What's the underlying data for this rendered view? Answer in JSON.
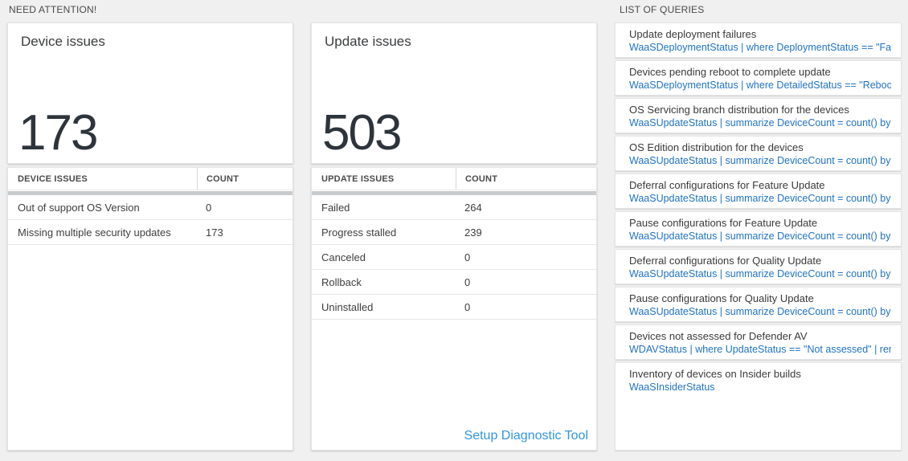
{
  "colors": {
    "big_number": "#2e343b",
    "query_link": "#2173c4",
    "setup_link": "#3295e0"
  },
  "need_attention": {
    "header": "NEED ATTENTION!",
    "device_card": {
      "title": "Device issues",
      "count": "173"
    },
    "device_table": {
      "columns": [
        "DEVICE ISSUES",
        "COUNT"
      ],
      "rows": [
        {
          "label": "Out of support OS Version",
          "count": "0"
        },
        {
          "label": "Missing multiple security updates",
          "count": "173"
        }
      ]
    },
    "update_card": {
      "title": "Update issues",
      "count": "503"
    },
    "update_table": {
      "columns": [
        "UPDATE ISSUES",
        "COUNT"
      ],
      "rows": [
        {
          "label": "Failed",
          "count": "264"
        },
        {
          "label": "Progress stalled",
          "count": "239"
        },
        {
          "label": "Canceled",
          "count": "0"
        },
        {
          "label": "Rollback",
          "count": "0"
        },
        {
          "label": "Uninstalled",
          "count": "0"
        }
      ],
      "footer_link": "Setup Diagnostic Tool"
    }
  },
  "queries": {
    "header": "LIST OF QUERIES",
    "items": [
      {
        "title": "Update deployment failures",
        "query": "WaaSDeploymentStatus | where DeploymentStatus == \"Failed\" |..."
      },
      {
        "title": "Devices pending reboot to complete update",
        "query": "WaaSDeploymentStatus | where DetailedStatus == \"Reboot pend..."
      },
      {
        "title": "OS Servicing branch distribution for the devices",
        "query": "WaaSUpdateStatus | summarize DeviceCount = count() by OSSer..."
      },
      {
        "title": "OS Edition distribution for the devices",
        "query": "WaaSUpdateStatus | summarize DeviceCount = count() by OSEdit..."
      },
      {
        "title": "Deferral configurations for Feature Update",
        "query": "WaaSUpdateStatus | summarize DeviceCount = count() by Featur..."
      },
      {
        "title": "Pause configurations for Feature Update",
        "query": "WaaSUpdateStatus | summarize DeviceCount = count() by Featur..."
      },
      {
        "title": "Deferral configurations for Quality Update",
        "query": "WaaSUpdateStatus | summarize DeviceCount = count() by Qualit..."
      },
      {
        "title": "Pause configurations for Quality Update",
        "query": "WaaSUpdateStatus | summarize DeviceCount = count() by Qualit..."
      },
      {
        "title": "Devices not assessed for Defender AV",
        "query": "WDAVStatus | where UpdateStatus == \"Not assessed\" | render ta..."
      },
      {
        "title": "Inventory of devices on Insider builds",
        "query": "WaaSInsiderStatus"
      }
    ]
  }
}
